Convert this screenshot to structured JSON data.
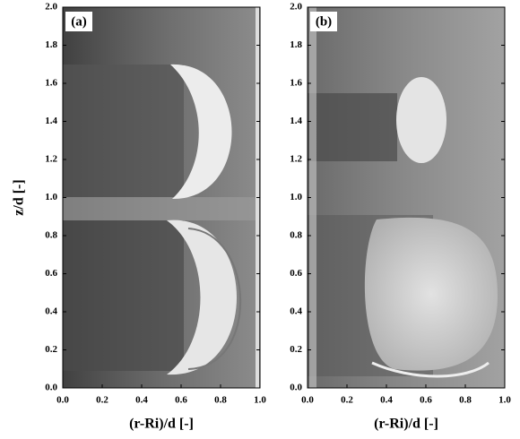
{
  "chart_data": [
    {
      "type": "image",
      "panel_label": "(a)",
      "xlabel": "(r-Ri)/d [-]",
      "ylabel": "z/d [-]",
      "xlim": [
        0,
        1
      ],
      "ylim": [
        0,
        2
      ],
      "xticks": [
        {
          "value": 0,
          "label": "0.0"
        },
        {
          "value": 0.2,
          "label": "0.2"
        },
        {
          "value": 0.4,
          "label": "0.4"
        },
        {
          "value": 0.6,
          "label": "0.6"
        },
        {
          "value": 0.8,
          "label": "0.8"
        },
        {
          "value": 1,
          "label": "1.0"
        }
      ],
      "yticks": [
        {
          "value": 0,
          "label": "0.0"
        },
        0.2,
        0.4,
        0.6,
        0.8,
        {
          "value": 1,
          "label": "1.0"
        },
        1.2,
        1.4,
        1.6,
        1.8,
        {
          "value": 2,
          "label": "2.0"
        }
      ]
    },
    {
      "type": "image",
      "panel_label": "(b)",
      "xlabel": "(r-Ri)/d [-]",
      "xlim": [
        0,
        1
      ],
      "ylim": [
        0,
        2
      ],
      "xticks": [
        {
          "value": 0,
          "label": "0.0"
        },
        {
          "value": 0.2,
          "label": "0.2"
        },
        {
          "value": 0.4,
          "label": "0.4"
        },
        {
          "value": 0.6,
          "label": "0.6"
        },
        {
          "value": 0.8,
          "label": "0.8"
        },
        {
          "value": 1,
          "label": "1.0"
        }
      ],
      "yticks": [
        {
          "value": 0,
          "label": "0.0"
        },
        0.2,
        0.4,
        0.6,
        0.8,
        {
          "value": 1,
          "label": "1.0"
        },
        1.2,
        1.4,
        1.6,
        1.8,
        {
          "value": 2,
          "label": "2.0"
        }
      ]
    }
  ]
}
